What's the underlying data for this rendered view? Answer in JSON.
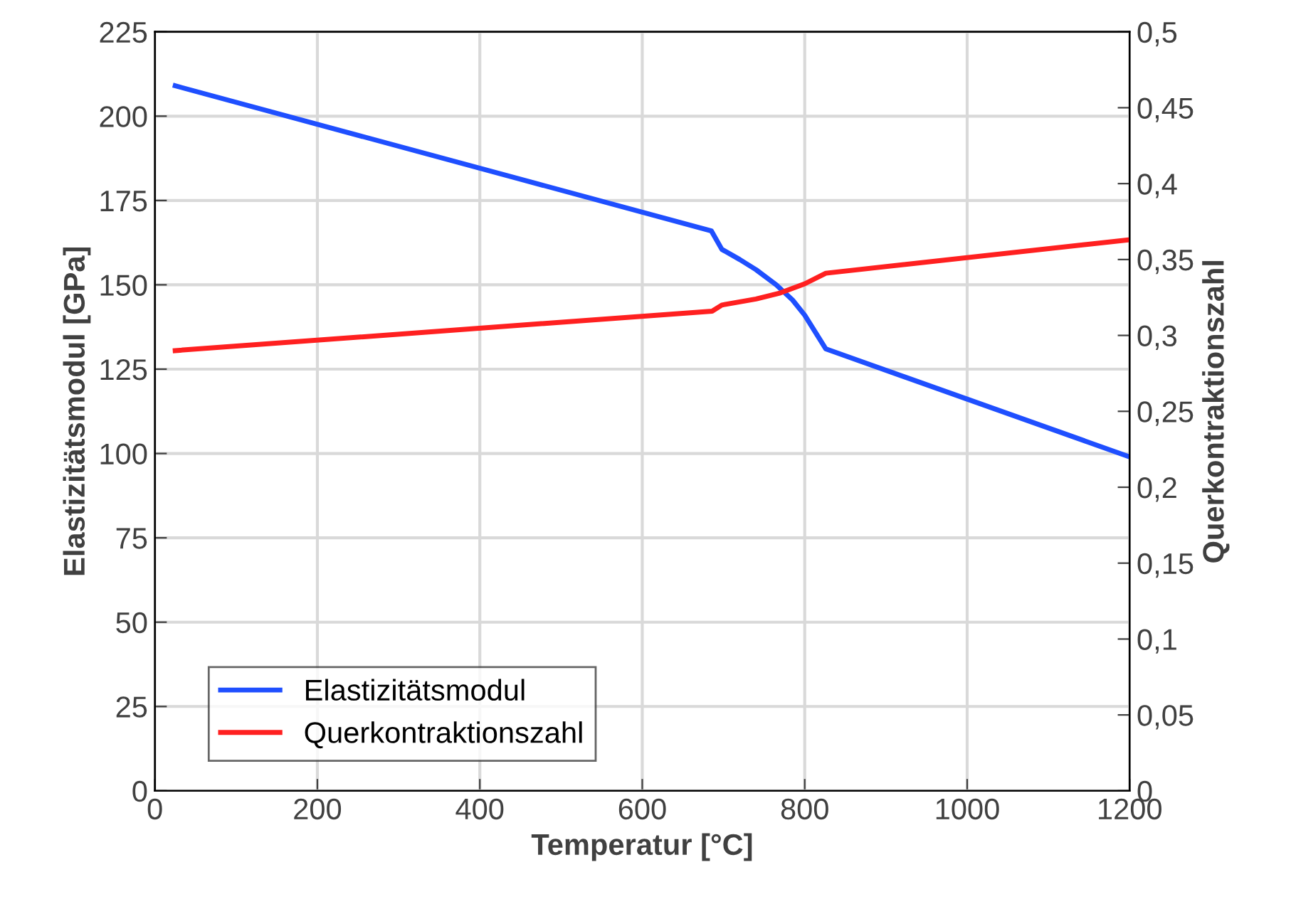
{
  "chart_data": {
    "type": "line",
    "xlabel": "Temperatur [°C]",
    "ylabel": "Elastizitätsmodul [GPa]",
    "y2label": "Querkontraktionszahl",
    "xlim": [
      0,
      1200
    ],
    "xticks": [
      0,
      200,
      400,
      600,
      800,
      1000,
      1200
    ],
    "ylim": [
      0,
      225
    ],
    "yticks": [
      0,
      25,
      50,
      75,
      100,
      125,
      150,
      175,
      200,
      225
    ],
    "y2lim": [
      0,
      0.5
    ],
    "y2ticks": [
      {
        "value": 0,
        "label": "0"
      },
      {
        "value": 0.05,
        "label": "0,05"
      },
      {
        "value": 0.1,
        "label": "0,1"
      },
      {
        "value": 0.15,
        "label": "0,15"
      },
      {
        "value": 0.2,
        "label": "0,2"
      },
      {
        "value": 0.25,
        "label": "0,25"
      },
      {
        "value": 0.3,
        "label": "0,3"
      },
      {
        "value": 0.35,
        "label": "0,35"
      },
      {
        "value": 0.4,
        "label": "0,4"
      },
      {
        "value": 0.45,
        "label": "0,45"
      },
      {
        "value": 0.5,
        "label": "0,5"
      }
    ],
    "grid": true,
    "legend": "bottom left",
    "series": [
      {
        "name": "Elastizitätsmodul",
        "color": "#1f4fff",
        "x": [
          25,
          685,
          698,
          720,
          740,
          765,
          785,
          800,
          826,
          1200
        ],
        "values": [
          209,
          166,
          160.5,
          157.5,
          154.5,
          150,
          145.5,
          141,
          131,
          99
        ]
      },
      {
        "name": "Querkontraktionszahl",
        "color": "#ff2020",
        "axis": "y2",
        "x": [
          25,
          686,
          698,
          740,
          770,
          800,
          826,
          1200
        ],
        "values": [
          0.29,
          0.316,
          0.32,
          0.324,
          0.328,
          0.334,
          0.341,
          0.363
        ]
      }
    ]
  }
}
